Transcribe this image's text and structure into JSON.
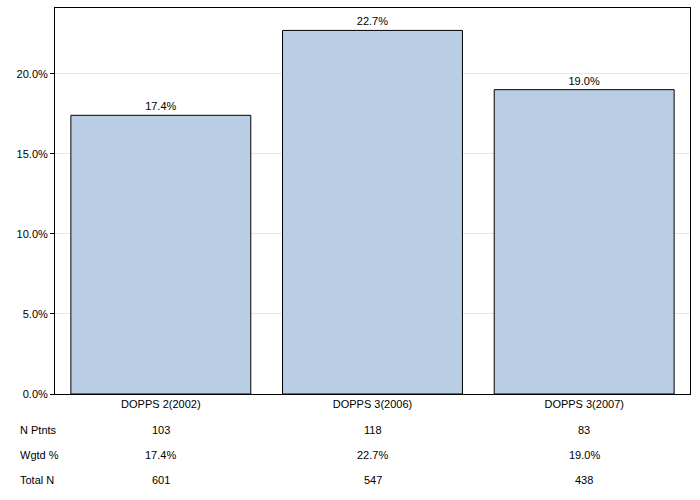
{
  "chart_data": {
    "type": "bar",
    "categories": [
      "DOPPS 2(2002)",
      "DOPPS 3(2006)",
      "DOPPS 3(2007)"
    ],
    "values": [
      17.4,
      22.7,
      19.0
    ],
    "value_labels": [
      "17.4%",
      "22.7%",
      "19.0%"
    ],
    "data_labels": true,
    "color": "#b9cde5",
    "ylim": [
      0,
      24.1
    ],
    "yticks": [
      {
        "value": 0,
        "label": "0.0%"
      },
      {
        "value": 5,
        "label": "5.0%"
      },
      {
        "value": 10,
        "label": "10.0%"
      },
      {
        "value": 15,
        "label": "15.0%"
      },
      {
        "value": 20,
        "label": "20.0%"
      }
    ],
    "grid": true,
    "table": {
      "rows": [
        {
          "label": "N Ptnts",
          "values": [
            "103",
            "118",
            "83"
          ]
        },
        {
          "label": "Wgtd %",
          "values": [
            "17.4%",
            "22.7%",
            "19.0%"
          ]
        },
        {
          "label": "Total N",
          "values": [
            "601",
            "547",
            "438"
          ]
        }
      ]
    }
  }
}
